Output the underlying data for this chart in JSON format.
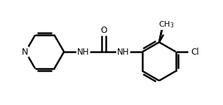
{
  "background_color": "#ffffff",
  "line_color": "#000000",
  "line_width": 1.8,
  "font_size": 8.5,
  "figsize": [
    3.18,
    1.5
  ],
  "dpi": 100,
  "xlim": [
    0,
    318
  ],
  "ylim": [
    0,
    150
  ]
}
